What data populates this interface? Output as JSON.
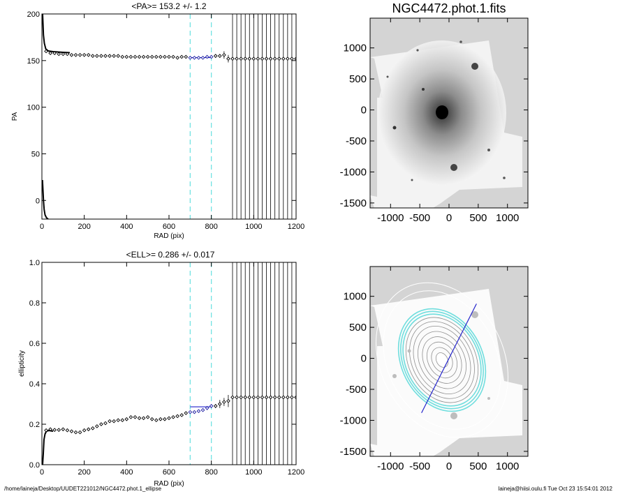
{
  "footer": {
    "path": "/home/laineja/Desktop/UUDET221012/NGC4472.phot.1_ellipse",
    "user_host_date": "laineja@hiisi.oulu.fi  Tue Oct 23 15:54:01 2012"
  },
  "colors": {
    "axis": "#000000",
    "points": "#000000",
    "fit_points": "#1a1aa0",
    "fit_line": "#2222cc",
    "range_marker": "#66e0e0",
    "ellipse": "#70dede",
    "image_background": "#d4d4d4"
  },
  "chart_data": [
    {
      "id": "pa-profile",
      "type": "scatter",
      "title": "<PA>= 153.2 +/-   1.2",
      "xlabel": "RAD (pix)",
      "ylabel": "PA",
      "xlim": [
        0,
        1200
      ],
      "ylim": [
        -20,
        200
      ],
      "xticks": [
        0,
        200,
        400,
        600,
        800,
        1000,
        1200
      ],
      "yticks": [
        0,
        50,
        100,
        150,
        200
      ],
      "fit_range": [
        700,
        800
      ],
      "mean_value": 153.2,
      "grid": false,
      "legend": "none",
      "vlines_start": 900,
      "vlines_step": 20,
      "vlines_end": 1200,
      "series": [
        {
          "x": [
            20,
            40,
            60,
            80,
            100,
            120,
            140,
            160,
            180,
            200,
            220,
            240,
            260,
            280,
            300,
            320,
            340,
            360,
            380,
            400,
            420,
            440,
            460,
            480,
            500,
            520,
            540,
            560,
            580,
            600,
            620,
            640,
            660,
            680,
            700,
            720,
            740,
            760,
            780,
            800,
            820,
            840,
            860,
            880,
            900,
            920,
            940,
            960,
            980,
            1000,
            1020,
            1040,
            1060,
            1080,
            1100,
            1120,
            1140,
            1160,
            1180,
            1200
          ],
          "y": [
            160,
            158,
            158,
            157,
            157,
            157,
            156,
            156,
            156,
            156,
            156,
            155,
            155,
            155,
            155,
            155,
            155,
            155,
            154,
            154,
            154,
            154,
            154,
            154,
            154,
            154,
            154,
            154,
            154,
            154,
            154,
            153,
            154,
            154,
            153,
            153,
            153,
            153,
            154,
            154,
            155,
            155,
            156,
            152,
            152,
            152,
            152,
            152,
            152,
            152,
            152,
            152,
            152,
            152,
            152,
            152,
            152,
            152,
            152,
            152
          ],
          "err": [
            0,
            0,
            0,
            0,
            0,
            0,
            0,
            0,
            0,
            0,
            0,
            0,
            0,
            0,
            0,
            0,
            0,
            0,
            0,
            0,
            0,
            0,
            0,
            0,
            0,
            0,
            0,
            0,
            0,
            0,
            0,
            0,
            1,
            1,
            1,
            1,
            1,
            1,
            1,
            1,
            2,
            2,
            4,
            4,
            0,
            0,
            0,
            0,
            0,
            0,
            0,
            0,
            0,
            0,
            0,
            0,
            0,
            0,
            0,
            0
          ]
        }
      ]
    },
    {
      "id": "ell-profile",
      "type": "scatter",
      "title": "<ELL>= 0.286 +/-  0.017",
      "xlabel": "RAD (pix)",
      "ylabel": "ellipticity",
      "xlim": [
        0,
        1200
      ],
      "ylim": [
        0,
        1
      ],
      "xticks": [
        0,
        200,
        400,
        600,
        800,
        1000,
        1200
      ],
      "yticks": [
        0.0,
        0.2,
        0.4,
        0.6,
        0.8,
        1.0
      ],
      "fit_range": [
        700,
        800
      ],
      "mean_value": 0.286,
      "grid": false,
      "legend": "none",
      "vlines_start": 900,
      "vlines_step": 20,
      "vlines_end": 1200,
      "series": [
        {
          "x": [
            20,
            40,
            60,
            80,
            100,
            120,
            140,
            160,
            180,
            200,
            220,
            240,
            260,
            280,
            300,
            320,
            340,
            360,
            380,
            400,
            420,
            440,
            460,
            480,
            500,
            520,
            540,
            560,
            580,
            600,
            620,
            640,
            660,
            680,
            700,
            720,
            740,
            760,
            780,
            800,
            820,
            840,
            860,
            880,
            900,
            920,
            940,
            960,
            980,
            1000,
            1020,
            1040,
            1060,
            1080,
            1100,
            1120,
            1140,
            1160,
            1180,
            1200
          ],
          "y": [
            0.17,
            0.175,
            0.172,
            0.172,
            0.175,
            0.17,
            0.165,
            0.16,
            0.16,
            0.17,
            0.175,
            0.18,
            0.19,
            0.2,
            0.205,
            0.215,
            0.215,
            0.22,
            0.22,
            0.225,
            0.235,
            0.235,
            0.23,
            0.23,
            0.235,
            0.225,
            0.22,
            0.225,
            0.225,
            0.23,
            0.235,
            0.24,
            0.245,
            0.255,
            0.26,
            0.26,
            0.265,
            0.27,
            0.28,
            0.29,
            0.29,
            0.3,
            0.31,
            0.315,
            0.333,
            0.333,
            0.333,
            0.333,
            0.333,
            0.333,
            0.333,
            0.333,
            0.333,
            0.333,
            0.333,
            0.333,
            0.333,
            0.333,
            0.333,
            0.333
          ],
          "err": [
            0,
            0,
            0,
            0,
            0,
            0,
            0,
            0,
            0,
            0,
            0,
            0,
            0,
            0,
            0,
            0,
            0,
            0,
            0,
            0,
            0,
            0,
            0,
            0,
            0,
            0,
            0,
            0,
            0,
            0,
            0,
            0,
            0.005,
            0.005,
            0.005,
            0.005,
            0.005,
            0.008,
            0.01,
            0.01,
            0.01,
            0.02,
            0.02,
            0.03,
            0,
            0,
            0,
            0,
            0,
            0,
            0,
            0,
            0,
            0,
            0,
            0,
            0,
            0,
            0,
            0
          ]
        }
      ]
    },
    {
      "id": "galaxy-image",
      "type": "heatmap",
      "title": "NGC4472.phot.1.fits",
      "xlim": [
        -1350,
        1350
      ],
      "ylim": [
        -1580,
        1480
      ],
      "xticks": [
        -1000,
        -500,
        0,
        500,
        1000
      ],
      "yticks": [
        -1500,
        -1000,
        -500,
        0,
        500,
        1000
      ],
      "tick_labels_x": [
        "-1000",
        "-500",
        "0",
        "500",
        "1000"
      ],
      "tick_labels_y": [
        "-1500",
        "-1000",
        "-500",
        "0",
        "500",
        "1000"
      ]
    },
    {
      "id": "contour-image",
      "type": "heatmap",
      "title": "",
      "xlim": [
        -1350,
        1350
      ],
      "ylim": [
        -1580,
        1480
      ],
      "xticks": [
        -1000,
        -500,
        0,
        500,
        1000
      ],
      "yticks": [
        -1500,
        -1000,
        -500,
        0,
        500,
        1000
      ],
      "tick_labels_x": [
        "-1000",
        "-500",
        "0",
        "500",
        "1000"
      ],
      "tick_labels_y": [
        "-1500",
        "-1000",
        "-500",
        "0",
        "500",
        "1000"
      ],
      "pa_line": {
        "from": [
          -470,
          -880
        ],
        "to": [
          470,
          880
        ]
      }
    }
  ]
}
